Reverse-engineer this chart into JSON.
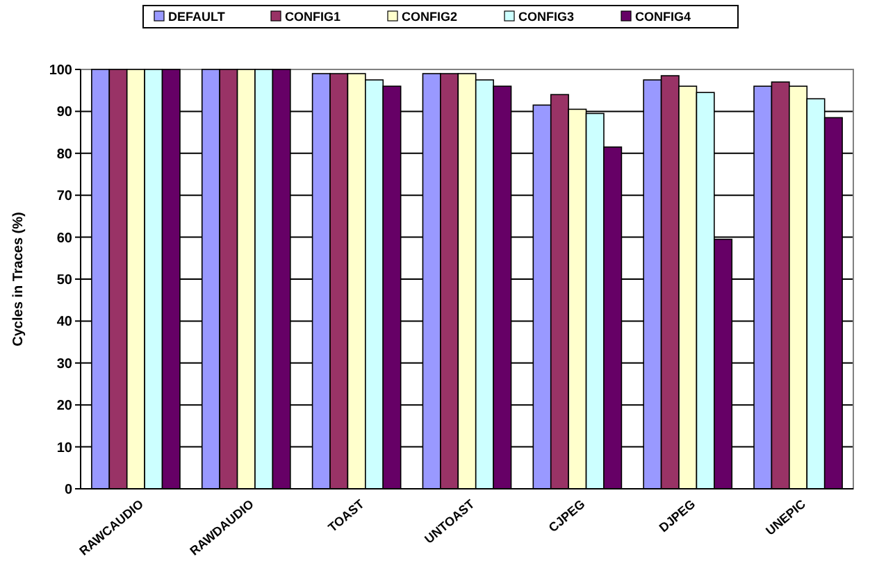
{
  "chart_data": {
    "type": "bar",
    "ylabel": "Cycles in Traces (%)",
    "categories": [
      "RAWCAUDIO",
      "RAWDAUDIO",
      "TOAST",
      "UNTOAST",
      "CJPEG",
      "DJPEG",
      "UNEPIC"
    ],
    "series": [
      {
        "name": "DEFAULT",
        "color": "#9999ff",
        "values": [
          100,
          100,
          99,
          99,
          91.5,
          97.5,
          96
        ]
      },
      {
        "name": "CONFIG1",
        "color": "#993366",
        "values": [
          100,
          100,
          99,
          99,
          94,
          98.5,
          97
        ]
      },
      {
        "name": "CONFIG2",
        "color": "#ffffcc",
        "values": [
          100,
          100,
          99,
          99,
          90.5,
          96,
          96
        ]
      },
      {
        "name": "CONFIG3",
        "color": "#ccffff",
        "values": [
          100,
          100,
          97.5,
          97.5,
          89.5,
          94.5,
          93
        ]
      },
      {
        "name": "CONFIG4",
        "color": "#660066",
        "values": [
          100,
          100,
          96,
          96,
          81.5,
          59.5,
          88.5
        ]
      }
    ],
    "ylim": [
      0,
      100
    ],
    "yticks": [
      0,
      10,
      20,
      30,
      40,
      50,
      60,
      70,
      80,
      90,
      100
    ],
    "grid": "y",
    "legend": "top"
  }
}
